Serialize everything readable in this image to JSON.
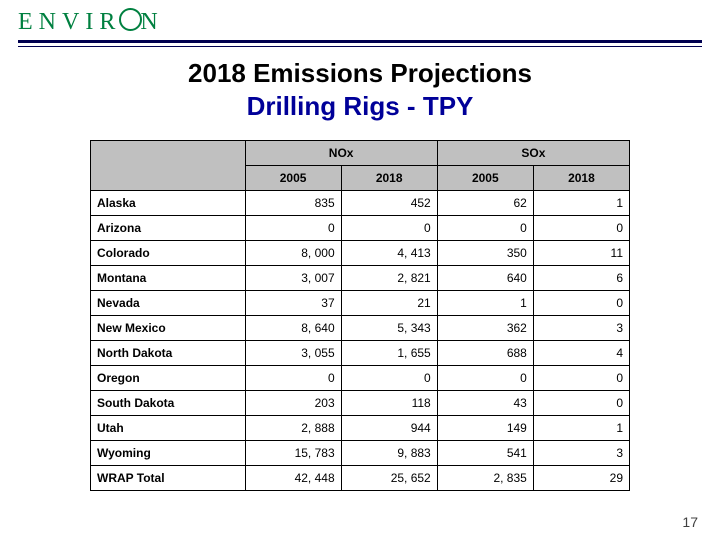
{
  "logo": {
    "text_pre": "ENVIR",
    "text_post": "N"
  },
  "title": {
    "line1": "2018 Emissions Projections",
    "line2": "Drilling Rigs - TPY"
  },
  "table": {
    "group_headers": [
      "NOx",
      "SOx"
    ],
    "year_headers": [
      "2005",
      "2018",
      "2005",
      "2018"
    ],
    "rows": [
      {
        "state": "Alaska",
        "v": [
          "835",
          "452",
          "62",
          "1"
        ]
      },
      {
        "state": "Arizona",
        "v": [
          "0",
          "0",
          "0",
          "0"
        ]
      },
      {
        "state": "Colorado",
        "v": [
          "8, 000",
          "4, 413",
          "350",
          "11"
        ]
      },
      {
        "state": "Montana",
        "v": [
          "3, 007",
          "2, 821",
          "640",
          "6"
        ]
      },
      {
        "state": "Nevada",
        "v": [
          "37",
          "21",
          "1",
          "0"
        ]
      },
      {
        "state": "New Mexico",
        "v": [
          "8, 640",
          "5, 343",
          "362",
          "3"
        ]
      },
      {
        "state": "North Dakota",
        "v": [
          "3, 055",
          "1, 655",
          "688",
          "4"
        ]
      },
      {
        "state": "Oregon",
        "v": [
          "0",
          "0",
          "0",
          "0"
        ]
      },
      {
        "state": "South Dakota",
        "v": [
          "203",
          "118",
          "43",
          "0"
        ]
      },
      {
        "state": "Utah",
        "v": [
          "2, 888",
          "944",
          "149",
          "1"
        ]
      },
      {
        "state": "Wyoming",
        "v": [
          "15, 783",
          "9, 883",
          "541",
          "3"
        ]
      },
      {
        "state": "WRAP Total",
        "v": [
          "42, 448",
          "25, 652",
          "2, 835",
          "29"
        ]
      }
    ]
  },
  "page_number": "17",
  "colors": {
    "brand_green": "#008040",
    "rule_navy": "#000050",
    "title_blue": "#000099",
    "header_gray": "#c0c0c0"
  }
}
